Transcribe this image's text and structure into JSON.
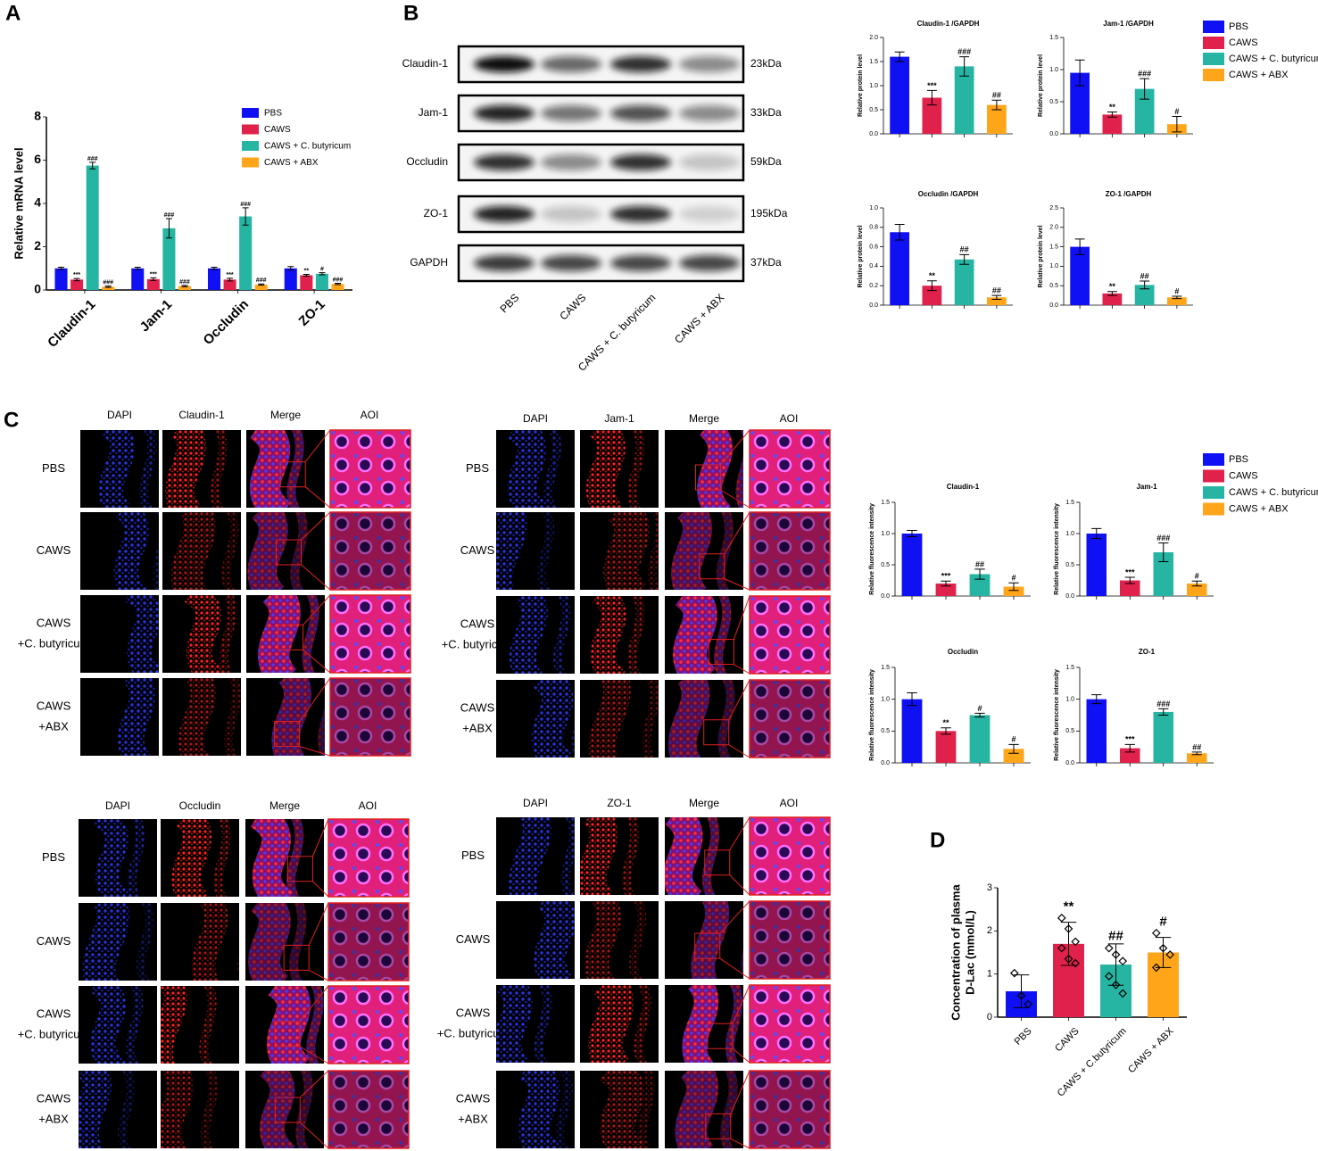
{
  "panel_labels": {
    "a": "A",
    "b": "B",
    "c": "C",
    "d": "D"
  },
  "groups": [
    {
      "name": "PBS",
      "color": "#1010f5"
    },
    {
      "name": "CAWS",
      "color": "#e0214b"
    },
    {
      "name": "CAWS + C. butyricum",
      "color": "#26b5a2"
    },
    {
      "name": "CAWS + ABX",
      "color": "#ffa51a"
    }
  ],
  "blot": {
    "rows": [
      {
        "label": "Claudin-1",
        "size": "23kDa"
      },
      {
        "label": "Jam-1",
        "size": "33kDa"
      },
      {
        "label": "Occludin",
        "size": "59kDa"
      },
      {
        "label": "ZO-1",
        "size": "195kDa"
      },
      {
        "label": "GAPDH",
        "size": "37kDa"
      }
    ],
    "lanes": [
      "PBS",
      "CAWS",
      "CAWS + C. butyricum",
      "CAWS + ABX"
    ]
  },
  "imaging": [
    {
      "headers": [
        "DAPI",
        "Claudin-1",
        "Merge",
        "AOI"
      ],
      "rows": [
        [
          "PBS"
        ],
        [
          "CAWS"
        ],
        [
          "CAWS",
          "+C. butyricum"
        ],
        [
          "CAWS",
          "+ABX"
        ]
      ]
    },
    {
      "headers": [
        "DAPI",
        "Jam-1",
        "Merge",
        "AOI"
      ],
      "rows": [
        [
          "PBS"
        ],
        [
          "CAWS"
        ],
        [
          "CAWS",
          "+C. butyricum"
        ],
        [
          "CAWS",
          "+ABX"
        ]
      ]
    },
    {
      "headers": [
        "DAPI",
        "Occludin",
        "Merge",
        "AOI"
      ],
      "rows": [
        [
          "PBS"
        ],
        [
          "CAWS"
        ],
        [
          "CAWS",
          "+C. butyricum"
        ],
        [
          "CAWS",
          "+ABX"
        ]
      ]
    },
    {
      "headers": [
        "DAPI",
        "ZO-1",
        "Merge",
        "AOI"
      ],
      "rows": [
        [
          "PBS"
        ],
        [
          "CAWS"
        ],
        [
          "CAWS",
          "+C. butyricum"
        ],
        [
          "CAWS",
          "+ABX"
        ]
      ]
    }
  ],
  "chart_data": [
    {
      "type": "bar",
      "ylabel": "Relative mRNA level",
      "categories": [
        "Claudin-1",
        "Jam-1",
        "Occludin",
        "ZO-1"
      ],
      "series": [
        {
          "name": "PBS",
          "color": "#1010f5",
          "values": [
            1,
            1,
            1,
            1
          ],
          "errors": [
            0.05,
            0.05,
            0.05,
            0.08
          ]
        },
        {
          "name": "CAWS",
          "color": "#e0214b",
          "values": [
            0.48,
            0.5,
            0.48,
            0.68
          ],
          "errors": [
            0.05,
            0.06,
            0.06,
            0.04
          ],
          "annotations": [
            "***",
            "***",
            "***",
            "**"
          ]
        },
        {
          "name": "CAWS + C. butyricum",
          "color": "#26b5a2",
          "values": [
            5.75,
            2.85,
            3.4,
            0.75
          ],
          "errors": [
            0.15,
            0.45,
            0.4,
            0.05
          ],
          "annotations": [
            "###",
            "###",
            "###",
            "#"
          ]
        },
        {
          "name": "CAWS + ABX",
          "color": "#ffa51a",
          "values": [
            0.15,
            0.18,
            0.25,
            0.28
          ],
          "errors": [
            0.03,
            0.03,
            0.03,
            0.03
          ],
          "annotations": [
            "###",
            "###",
            "###",
            "###"
          ]
        }
      ],
      "ylim": [
        0,
        8
      ],
      "yticks": [
        0,
        2,
        4,
        6,
        8
      ]
    },
    {
      "type": "bar",
      "title": "Claudin-1 /GAPDH",
      "ylabel": "Relative protein level",
      "categories": [
        null,
        null,
        null,
        null
      ],
      "values": [
        1.6,
        0.75,
        1.4,
        0.6
      ],
      "errors": [
        0.1,
        0.15,
        0.2,
        0.1
      ],
      "annotations": [
        null,
        "***",
        "###",
        "##"
      ],
      "ylim": [
        0,
        2
      ],
      "yticks": [
        {
          "value": 0,
          "label": "0.0"
        },
        {
          "value": 0.5,
          "label": "0.5"
        },
        {
          "value": 1,
          "label": "1.0"
        },
        {
          "value": 1.5,
          "label": "1.5"
        },
        {
          "value": 2,
          "label": "2.0"
        }
      ]
    },
    {
      "type": "bar",
      "title": "Jam-1 /GAPDH",
      "ylabel": "Relative protein level",
      "categories": [
        null,
        null,
        null,
        null
      ],
      "values": [
        0.95,
        0.3,
        0.7,
        0.15
      ],
      "errors": [
        0.2,
        0.04,
        0.16,
        0.12
      ],
      "annotations": [
        null,
        "**",
        "###",
        "#"
      ],
      "ylim": [
        0,
        1.5
      ],
      "yticks": [
        {
          "value": 0,
          "label": "0.0"
        },
        {
          "value": 0.5,
          "label": "0.5"
        },
        {
          "value": 1,
          "label": "1.0"
        },
        {
          "value": 1.5,
          "label": "1.5"
        }
      ]
    },
    {
      "type": "bar",
      "title": "Occludin /GAPDH",
      "ylabel": "Relative protein level",
      "categories": [
        null,
        null,
        null,
        null
      ],
      "values": [
        0.75,
        0.2,
        0.47,
        0.08
      ],
      "errors": [
        0.08,
        0.05,
        0.05,
        0.02
      ],
      "annotations": [
        null,
        "**",
        "##",
        "##"
      ],
      "ylim": [
        0,
        1
      ],
      "yticks": [
        {
          "value": 0,
          "label": "0.0"
        },
        {
          "value": 0.2,
          "label": "0.2"
        },
        {
          "value": 0.4,
          "label": "0.4"
        },
        {
          "value": 0.6,
          "label": "0.6"
        },
        {
          "value": 0.8,
          "label": "0.8"
        },
        {
          "value": 1,
          "label": "1.0"
        }
      ]
    },
    {
      "type": "bar",
      "title": "ZO-1 /GAPDH",
      "ylabel": "Relative protein level",
      "categories": [
        null,
        null,
        null,
        null
      ],
      "values": [
        1.5,
        0.3,
        0.52,
        0.2
      ],
      "errors": [
        0.2,
        0.05,
        0.1,
        0.03
      ],
      "annotations": [
        null,
        "**",
        "##",
        "#"
      ],
      "ylim": [
        0,
        2.5
      ],
      "yticks": [
        {
          "value": 0,
          "label": "0.0"
        },
        {
          "value": 0.5,
          "label": "0.5"
        },
        {
          "value": 1,
          "label": "1.0"
        },
        {
          "value": 1.5,
          "label": "1.5"
        },
        {
          "value": 2,
          "label": "2.0"
        },
        {
          "value": 2.5,
          "label": "2.5"
        }
      ]
    },
    {
      "type": "bar",
      "title": "Claudin-1",
      "ylabel": "Relative fluorescence intensity",
      "categories": [
        null,
        null,
        null,
        null
      ],
      "values": [
        1.0,
        0.2,
        0.35,
        0.15
      ],
      "errors": [
        0.05,
        0.04,
        0.08,
        0.06
      ],
      "annotations": [
        null,
        "***",
        "##",
        "#"
      ],
      "ylim": [
        0,
        1.5
      ],
      "yticks": [
        {
          "value": 0,
          "label": "0.0"
        },
        {
          "value": 0.5,
          "label": "0.5"
        },
        {
          "value": 1,
          "label": "1.0"
        },
        {
          "value": 1.5,
          "label": "1.5"
        }
      ]
    },
    {
      "type": "bar",
      "title": "Jam-1",
      "ylabel": "Relative fluorescence intensity",
      "categories": [
        null,
        null,
        null,
        null
      ],
      "values": [
        1.0,
        0.25,
        0.7,
        0.2
      ],
      "errors": [
        0.08,
        0.05,
        0.15,
        0.04
      ],
      "annotations": [
        null,
        "***",
        "###",
        "#"
      ],
      "ylim": [
        0,
        1.5
      ],
      "yticks": [
        {
          "value": 0,
          "label": "0.0"
        },
        {
          "value": 0.5,
          "label": "0.5"
        },
        {
          "value": 1,
          "label": "1.0"
        },
        {
          "value": 1.5,
          "label": "1.5"
        }
      ]
    },
    {
      "type": "bar",
      "title": "Occludin",
      "ylabel": "Relative fluorescence intensity",
      "categories": [
        null,
        null,
        null,
        null
      ],
      "values": [
        1.0,
        0.5,
        0.75,
        0.22
      ],
      "errors": [
        0.1,
        0.05,
        0.03,
        0.07
      ],
      "annotations": [
        null,
        "**",
        "#",
        "#"
      ],
      "ylim": [
        0,
        1.5
      ],
      "yticks": [
        {
          "value": 0,
          "label": "0.0"
        },
        {
          "value": 0.5,
          "label": "0.5"
        },
        {
          "value": 1,
          "label": "1.0"
        },
        {
          "value": 1.5,
          "label": "1.5"
        }
      ]
    },
    {
      "type": "bar",
      "title": "ZO-1",
      "ylabel": "Relative fluorescence intensity",
      "categories": [
        null,
        null,
        null,
        null
      ],
      "values": [
        1.0,
        0.23,
        0.8,
        0.15
      ],
      "errors": [
        0.07,
        0.06,
        0.05,
        0.02
      ],
      "annotations": [
        null,
        "***",
        "###",
        "##"
      ],
      "ylim": [
        0,
        1.5
      ],
      "yticks": [
        {
          "value": 0,
          "label": "0.0"
        },
        {
          "value": 0.5,
          "label": "0.5"
        },
        {
          "value": 1,
          "label": "1.0"
        },
        {
          "value": 1.5,
          "label": "1.5"
        }
      ]
    },
    {
      "type": "bar",
      "ylabel": [
        "Concentration of plasma",
        "D-Lac (mmol/L)"
      ],
      "categories": [
        "PBS",
        "CAWS",
        "CAWS + C.butyricum",
        "CAWS + ABX"
      ],
      "values": [
        0.6,
        1.7,
        1.22,
        1.5
      ],
      "errors": [
        0.38,
        0.5,
        0.48,
        0.35
      ],
      "annotations": [
        null,
        "**",
        "##",
        "#"
      ],
      "points": [
        [
          1.02,
          0.5,
          0.3
        ],
        [
          2.3,
          2.05,
          1.75,
          1.6,
          1.35,
          1.25
        ],
        [
          1.6,
          1.45,
          1.3,
          0.95,
          0.75,
          0.55
        ],
        [
          1.95,
          1.6,
          1.45,
          1.15
        ]
      ],
      "ylim": [
        0,
        3
      ],
      "yticks": [
        0,
        1,
        2,
        3
      ]
    }
  ]
}
